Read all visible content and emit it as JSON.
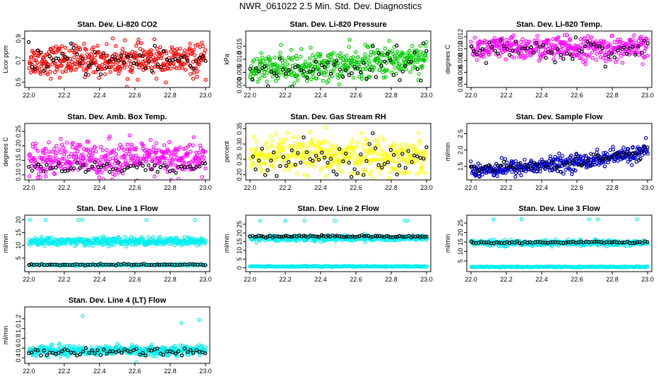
{
  "main_title": "NWR_061022  2.5 Min. Std. Dev. Diagnostics",
  "chart_data": [
    {
      "type": "scatter",
      "title": "Stan. Dev. Li-820 CO2",
      "ylabel": "Licor ppm",
      "xlim": [
        22.0,
        23.0
      ],
      "ylim": [
        0.47,
        0.95
      ],
      "color": "#ff0000",
      "xticks": [
        "22.0",
        "22.2",
        "22.4",
        "22.6",
        "22.8",
        "23.0"
      ],
      "yticks": [
        "0.5",
        "0.7",
        "0.9"
      ],
      "series": [
        {
          "name": "all",
          "center": 0.7,
          "spread": 0.07,
          "n": 420,
          "trend": 0
        },
        {
          "name": "selected",
          "center": 0.7,
          "spread": 0.07,
          "n": 60,
          "trend": 0,
          "black": true
        }
      ]
    },
    {
      "type": "scatter",
      "title": "Stan. Dev. Li-820 Pressure",
      "ylabel": "kPa",
      "xlim": [
        22.0,
        23.0
      ],
      "ylim": [
        0.0,
        0.02
      ],
      "color": "#00cc00",
      "xticks": [
        "22.0",
        "22.2",
        "22.4",
        "22.6",
        "22.8",
        "23.0"
      ],
      "yticks": [
        "0.000",
        "0.005",
        "0.010",
        "0.015"
      ],
      "series": [
        {
          "name": "all",
          "center": 0.006,
          "spread": 0.003,
          "n": 420,
          "trend": 0.005
        },
        {
          "name": "selected",
          "center": 0.005,
          "spread": 0.003,
          "n": 60,
          "trend": 0.005,
          "black": true
        }
      ]
    },
    {
      "type": "scatter",
      "title": "Stan. Dev. Li-820 Temp.",
      "ylabel": "degrees C",
      "xlim": [
        22.0,
        23.0
      ],
      "ylim": [
        0.0038,
        0.0126
      ],
      "color": "#ff00ff",
      "xticks": [
        "22.0",
        "22.2",
        "22.4",
        "22.6",
        "22.8",
        "23.0"
      ],
      "yticks": [
        "0.004",
        "0.006",
        "0.008",
        "0.010",
        "0.012"
      ],
      "series": [
        {
          "name": "all",
          "center": 0.01,
          "spread": 0.001,
          "n": 420,
          "trend": 0
        },
        {
          "name": "selected",
          "center": 0.0098,
          "spread": 0.001,
          "n": 60,
          "trend": 0,
          "black": true
        }
      ]
    },
    {
      "type": "scatter",
      "title": "Stan. Dev. Amb. Box Temp.",
      "ylabel": "degrees C",
      "xlim": [
        22.0,
        23.0
      ],
      "ylim": [
        0.09,
        0.27
      ],
      "color": "#ff00ff",
      "xticks": [
        "22.0",
        "22.2",
        "22.4",
        "22.6",
        "22.8",
        "23.0"
      ],
      "yticks": [
        "0.10",
        "0.15",
        "0.20",
        "0.25"
      ],
      "series": [
        {
          "name": "all",
          "center": 0.155,
          "spread": 0.03,
          "n": 420,
          "trend": 0
        },
        {
          "name": "selected",
          "center": 0.125,
          "spread": 0.01,
          "n": 60,
          "trend": 0,
          "black": true
        }
      ]
    },
    {
      "type": "scatter",
      "title": "Stan. Dev. Gas Stream RH",
      "ylabel": "percent",
      "xlim": [
        22.0,
        23.0
      ],
      "ylim": [
        0.19,
        0.36
      ],
      "color": "#ffff00",
      "xticks": [
        "22.0",
        "22.2",
        "22.4",
        "22.6",
        "22.8",
        "23.0"
      ],
      "yticks": [
        "0.20",
        "0.25",
        "0.30",
        "0.35"
      ],
      "series": [
        {
          "name": "all",
          "center": 0.26,
          "spread": 0.03,
          "n": 420,
          "trend": 0
        },
        {
          "name": "selected",
          "center": 0.25,
          "spread": 0.03,
          "n": 60,
          "trend": 0,
          "black": true
        }
      ]
    },
    {
      "type": "scatter",
      "title": "Stan. Dev. Sample Flow",
      "ylabel": "ml/min",
      "xlim": [
        22.0,
        23.0
      ],
      "ylim": [
        1.15,
        2.75
      ],
      "color": "#0000cc",
      "xticks": [
        "22.0",
        "22.2",
        "22.4",
        "22.6",
        "22.8",
        "23.0"
      ],
      "yticks": [
        "1.5",
        "2.0",
        "2.5"
      ],
      "series": [
        {
          "name": "all",
          "center": 1.4,
          "spread": 0.12,
          "n": 420,
          "trend": 0.55
        },
        {
          "name": "selected",
          "center": 1.4,
          "spread": 0.1,
          "n": 60,
          "trend": 0.55,
          "black": true
        }
      ]
    },
    {
      "type": "scatter",
      "title": "Stan. Dev. Line 1 Flow",
      "ylabel": "ml/min",
      "xlim": [
        22.0,
        23.0
      ],
      "ylim": [
        0.5,
        21
      ],
      "color": "#00eeee",
      "xticks": [
        "22.0",
        "22.2",
        "22.4",
        "22.6",
        "22.8",
        "23.0"
      ],
      "yticks": [
        "5",
        "10",
        "15",
        "20"
      ],
      "series": [
        {
          "name": "band",
          "center": 11.5,
          "spread": 0.8,
          "n": 400,
          "trend": 0
        },
        {
          "name": "low",
          "center": 2.3,
          "spread": 0.15,
          "n": 200,
          "trend": 0
        },
        {
          "name": "selected",
          "center": 2.4,
          "spread": 0.15,
          "n": 70,
          "trend": 0,
          "black": true
        },
        {
          "name": "outliers",
          "center": 20.0,
          "spread": 0.1,
          "n": 6,
          "trend": 0
        }
      ]
    },
    {
      "type": "scatter",
      "title": "Stan. Dev. Line 2 Flow",
      "ylabel": "ml/min",
      "xlim": [
        22.0,
        23.0
      ],
      "ylim": [
        -1,
        29
      ],
      "color": "#00eeee",
      "xticks": [
        "22.0",
        "22.2",
        "22.4",
        "22.6",
        "22.8",
        "23.0"
      ],
      "yticks": [
        "0",
        "5",
        "10",
        "15",
        "20",
        "25"
      ],
      "series": [
        {
          "name": "band",
          "center": 17.0,
          "spread": 0.8,
          "n": 400,
          "trend": 0
        },
        {
          "name": "low",
          "center": 0.8,
          "spread": 0.15,
          "n": 220,
          "trend": 0
        },
        {
          "name": "selected",
          "center": 18.0,
          "spread": 0.3,
          "n": 80,
          "trend": 0,
          "black": true
        },
        {
          "name": "outliers",
          "center": 27.0,
          "spread": 0.1,
          "n": 6,
          "trend": 0
        }
      ]
    },
    {
      "type": "scatter",
      "title": "Stan. Dev. Line 3 Flow",
      "ylabel": "ml/min",
      "xlim": [
        22.0,
        23.0
      ],
      "ylim": [
        0.5,
        28
      ],
      "color": "#00eeee",
      "xticks": [
        "22.0",
        "22.2",
        "22.4",
        "22.6",
        "22.8",
        "23.0"
      ],
      "yticks": [
        "5",
        "10",
        "15",
        "20",
        "25"
      ],
      "series": [
        {
          "name": "band",
          "center": 14.5,
          "spread": 0.7,
          "n": 400,
          "trend": 0
        },
        {
          "name": "low",
          "center": 1.9,
          "spread": 0.15,
          "n": 220,
          "trend": 0
        },
        {
          "name": "selected",
          "center": 14.8,
          "spread": 0.3,
          "n": 70,
          "trend": 0,
          "black": true
        },
        {
          "name": "outliers",
          "center": 27.0,
          "spread": 0.1,
          "n": 5,
          "trend": 0
        }
      ]
    },
    {
      "type": "scatter",
      "title": "Stan. Dev. Line 4 (LT) Flow",
      "ylabel": "ml/min",
      "xlim": [
        22.0,
        23.0
      ],
      "ylim": [
        0.33,
        1.4
      ],
      "color": "#00eeee",
      "xticks": [
        "22.0",
        "22.2",
        "22.4",
        "22.6",
        "22.8",
        "23.0"
      ],
      "yticks": [
        "0.4",
        "0.6",
        "0.8",
        "1.0",
        "1.2"
      ],
      "series": [
        {
          "name": "all",
          "center": 0.55,
          "spread": 0.05,
          "n": 420,
          "trend": 0
        },
        {
          "name": "selected",
          "center": 0.53,
          "spread": 0.04,
          "n": 60,
          "trend": 0,
          "black": true
        },
        {
          "name": "outliers",
          "center": 1.2,
          "spread": 0.12,
          "n": 3,
          "trend": 0
        }
      ]
    }
  ]
}
